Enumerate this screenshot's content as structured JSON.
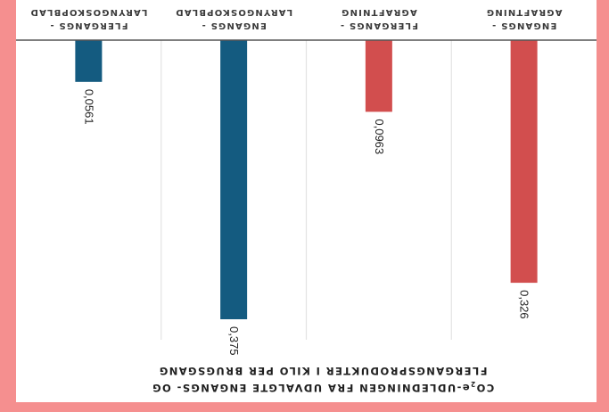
{
  "chart_data": {
    "type": "bar",
    "orientation": "rendered upside down (rotated 180°)",
    "title_lines": [
      "FLERGANGSPRODUKTER I KILO PER BRUGSGANG"
    ],
    "title_line1_parts": {
      "pre": "CO",
      "sub": "2",
      "post": "e-UDLEDNINGEN FRA UDVALGTE ENGANGS- OG"
    },
    "categories": [
      [
        "ENGANGS -",
        "AGRAFTNING"
      ],
      [
        "FLERGANGS -",
        "AGRAFTNING"
      ],
      [
        "ENGANGS -",
        "LARYNGOSKOPBLAD"
      ],
      [
        "FLERGANGS -",
        "LARYNGOSKOPBLAD"
      ]
    ],
    "values": [
      0.326,
      0.0963,
      0.375,
      0.0561
    ],
    "value_labels": [
      "0,326",
      "0,0963",
      "0,375",
      "0,0561"
    ],
    "bar_colors": [
      "#d24e4e",
      "#d24e4e",
      "#145b80",
      "#145b80"
    ],
    "ylim": [
      0,
      0.375
    ],
    "grid": true
  }
}
